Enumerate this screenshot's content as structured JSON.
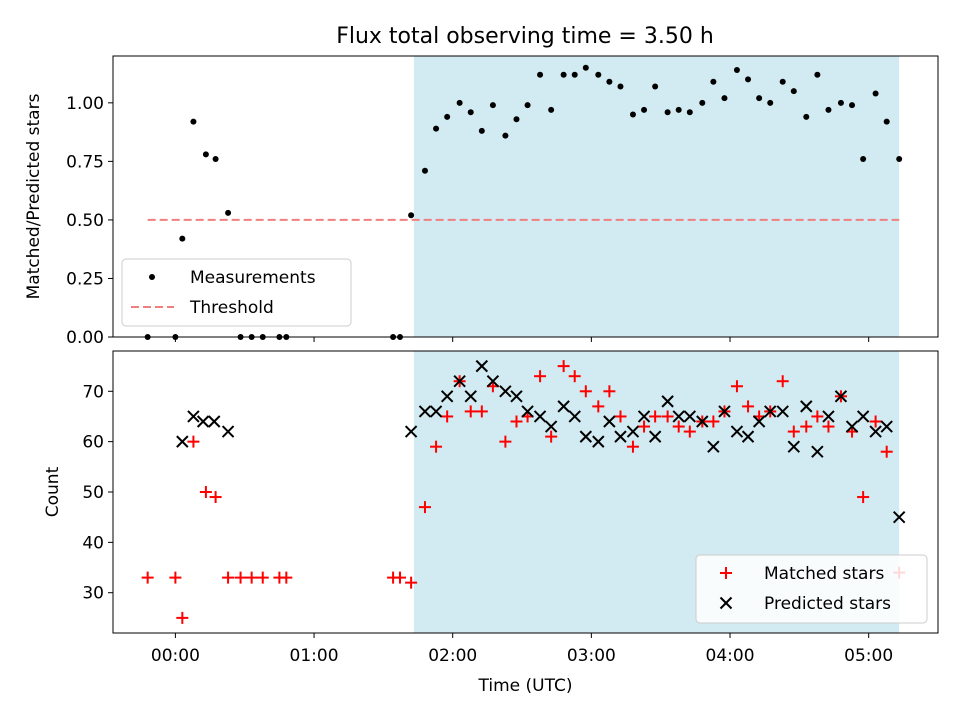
{
  "chart_data": [
    {
      "type": "scatter",
      "title": "Flux total observing time = 3.50 h",
      "xlabel": "",
      "ylabel": "Matched/Predicted stars",
      "xlim": [
        -0.45,
        5.5
      ],
      "ylim": [
        0,
        1.2
      ],
      "yticks": [
        0.0,
        0.25,
        0.5,
        0.75,
        1.0
      ],
      "ytick_labels": [
        "0.00",
        "0.25",
        "0.50",
        "0.75",
        "1.00"
      ],
      "shaded_region": {
        "x": [
          1.72,
          5.22
        ],
        "color": "#add8e6"
      },
      "threshold": {
        "name": "Threshold",
        "y": 0.5,
        "x": [
          -0.2,
          5.22
        ],
        "color": "#f08080"
      },
      "legend": {
        "position": "lower-left"
      },
      "series": [
        {
          "name": "Measurements",
          "color": "#000000",
          "marker": "dot",
          "x": [
            -0.2,
            0.0,
            0.05,
            0.13,
            0.22,
            0.29,
            0.38,
            0.47,
            0.55,
            0.63,
            0.75,
            0.8,
            1.57,
            1.62,
            1.7,
            1.8,
            1.88,
            1.96,
            2.05,
            2.13,
            2.21,
            2.29,
            2.38,
            2.46,
            2.54,
            2.63,
            2.71,
            2.8,
            2.88,
            2.96,
            3.05,
            3.13,
            3.21,
            3.3,
            3.38,
            3.46,
            3.55,
            3.63,
            3.71,
            3.8,
            3.88,
            3.96,
            4.05,
            4.13,
            4.21,
            4.29,
            4.38,
            4.46,
            4.55,
            4.63,
            4.71,
            4.8,
            4.88,
            4.96,
            5.05,
            5.13,
            5.22
          ],
          "y": [
            0.0,
            0.0,
            0.42,
            0.92,
            0.78,
            0.76,
            0.53,
            0.0,
            0.0,
            0.0,
            0.0,
            0.0,
            0.0,
            0.0,
            0.52,
            0.71,
            0.89,
            0.94,
            1.0,
            0.96,
            0.88,
            0.99,
            0.86,
            0.93,
            0.99,
            1.12,
            0.97,
            1.12,
            1.12,
            1.15,
            1.12,
            1.09,
            1.07,
            0.95,
            0.97,
            1.07,
            0.96,
            0.97,
            0.96,
            1.0,
            1.09,
            1.02,
            1.14,
            1.1,
            1.02,
            1.0,
            1.09,
            1.05,
            0.94,
            1.12,
            0.97,
            1.0,
            0.99,
            0.76,
            1.04,
            0.92,
            0.76
          ]
        }
      ]
    },
    {
      "type": "scatter",
      "title": "",
      "xlabel": "Time (UTC)",
      "ylabel": "Count",
      "xlim": [
        -0.45,
        5.5
      ],
      "ylim": [
        22,
        78
      ],
      "xticks": [
        0,
        1,
        2,
        3,
        4,
        5
      ],
      "xtick_labels": [
        "00:00",
        "01:00",
        "02:00",
        "03:00",
        "04:00",
        "05:00"
      ],
      "yticks": [
        30,
        40,
        50,
        60,
        70
      ],
      "ytick_labels": [
        "30",
        "40",
        "50",
        "60",
        "70"
      ],
      "shaded_region": {
        "x": [
          1.72,
          5.22
        ],
        "color": "#add8e6"
      },
      "legend": {
        "position": "lower-right"
      },
      "series": [
        {
          "name": "Matched stars",
          "color": "#ff0000",
          "marker": "plus",
          "x": [
            -0.2,
            0.0,
            0.05,
            0.13,
            0.22,
            0.29,
            0.38,
            0.47,
            0.55,
            0.63,
            0.75,
            0.8,
            1.57,
            1.62,
            1.7,
            1.8,
            1.88,
            1.96,
            2.05,
            2.13,
            2.21,
            2.29,
            2.38,
            2.46,
            2.54,
            2.63,
            2.71,
            2.8,
            2.88,
            2.96,
            3.05,
            3.13,
            3.21,
            3.3,
            3.38,
            3.46,
            3.55,
            3.63,
            3.71,
            3.8,
            3.88,
            3.96,
            4.05,
            4.13,
            4.21,
            4.29,
            4.38,
            4.46,
            4.55,
            4.63,
            4.71,
            4.8,
            4.88,
            4.96,
            5.05,
            5.13,
            5.22
          ],
          "y": [
            33,
            33,
            25,
            60,
            50,
            49,
            33,
            33,
            33,
            33,
            33,
            33,
            33,
            33,
            32,
            47,
            59,
            65,
            72,
            66,
            66,
            71,
            60,
            64,
            65,
            73,
            61,
            75,
            73,
            70,
            67,
            70,
            65,
            59,
            63,
            65,
            65,
            63,
            62,
            64,
            64,
            66,
            71,
            67,
            65,
            66,
            72,
            62,
            63,
            65,
            63,
            69,
            62,
            49,
            64,
            58,
            34
          ]
        },
        {
          "name": "Predicted stars",
          "color": "#000000",
          "marker": "x",
          "x": [
            0.05,
            0.13,
            0.2,
            0.28,
            0.38,
            1.7,
            1.8,
            1.88,
            1.96,
            2.05,
            2.13,
            2.21,
            2.29,
            2.38,
            2.46,
            2.54,
            2.63,
            2.71,
            2.8,
            2.88,
            2.96,
            3.05,
            3.13,
            3.21,
            3.3,
            3.38,
            3.46,
            3.55,
            3.63,
            3.71,
            3.8,
            3.88,
            3.96,
            4.05,
            4.13,
            4.21,
            4.29,
            4.38,
            4.46,
            4.55,
            4.63,
            4.71,
            4.8,
            4.88,
            4.96,
            5.05,
            5.13,
            5.22
          ],
          "y": [
            60,
            65,
            64,
            64,
            62,
            62,
            66,
            66,
            69,
            72,
            69,
            75,
            72,
            70,
            69,
            66,
            65,
            63,
            67,
            65,
            61,
            60,
            64,
            61,
            62,
            65,
            61,
            68,
            65,
            65,
            64,
            59,
            66,
            62,
            61,
            64,
            66,
            66,
            59,
            67,
            58,
            65,
            69,
            63,
            65,
            62,
            63,
            45
          ]
        }
      ]
    }
  ]
}
